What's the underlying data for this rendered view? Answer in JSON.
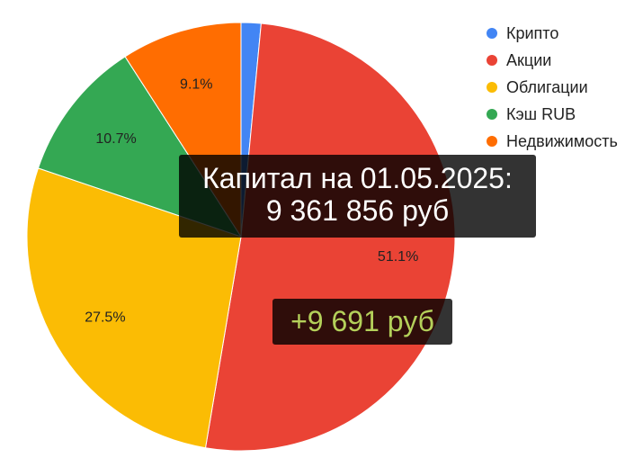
{
  "chart_data": {
    "type": "pie",
    "slices": [
      {
        "label": "Крипто",
        "value": 1.5,
        "color": "#4285f4",
        "data_label": ""
      },
      {
        "label": "Акции",
        "value": 51.1,
        "color": "#ea4335",
        "data_label": "51.1%"
      },
      {
        "label": "Облигации",
        "value": 27.5,
        "color": "#fbbc04",
        "data_label": "27.5%"
      },
      {
        "label": "Кэш RUB",
        "value": 10.7,
        "color": "#34a853",
        "data_label": "10.7%"
      },
      {
        "label": "Недвижимость",
        "value": 9.1,
        "color": "#ff6d01",
        "data_label": "9.1%"
      }
    ],
    "legend_position": "top-right"
  },
  "overlay": {
    "capital_line1": "Капитал на 01.05.2025:",
    "capital_line2": "9 361 856 руб",
    "change": "+9 691 руб"
  }
}
